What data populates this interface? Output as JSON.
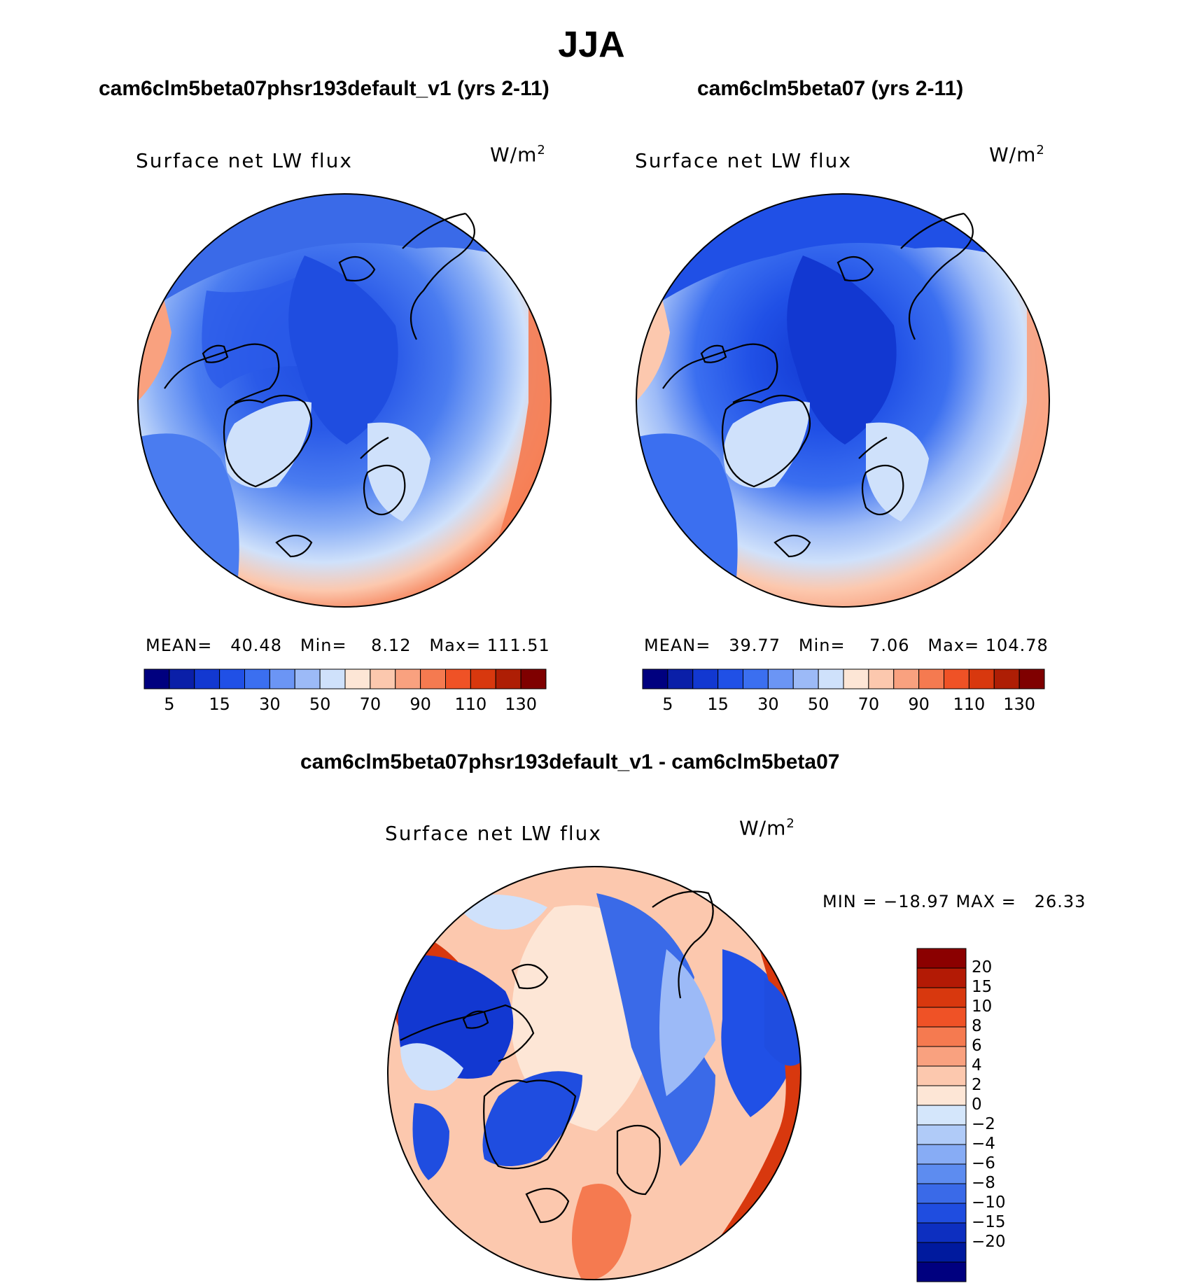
{
  "season": "JJA",
  "panels": {
    "left": {
      "case_title": "cam6clm5beta07phsr193default_v1 (yrs 2-11)",
      "variable": "Surface net LW flux",
      "unit_base": "W/m",
      "unit_exp": "2",
      "mean_label": "MEAN=",
      "mean_value": "40.48",
      "min_label": "Min=",
      "min_value": "8.12",
      "max_label": "Max=",
      "max_value": "111.51"
    },
    "right": {
      "case_title": "cam6clm5beta07 (yrs 2-11)",
      "variable": "Surface net LW flux",
      "unit_base": "W/m",
      "unit_exp": "2",
      "mean_label": "MEAN=",
      "mean_value": "39.77",
      "min_label": "Min=",
      "min_value": "7.06",
      "max_label": "Max=",
      "max_value": "104.78"
    },
    "diff": {
      "case_title": "cam6clm5beta07phsr193default_v1 - cam6clm5beta07",
      "variable": "Surface net LW flux",
      "unit_base": "W/m",
      "unit_exp": "2",
      "minmax_text": "MIN = −18.97 MAX =   26.33"
    }
  },
  "colorbar_top": {
    "colors": [
      "#00007f",
      "#0a1fa8",
      "#1238d1",
      "#2050e6",
      "#3b6ff0",
      "#6b95f5",
      "#9cbaf7",
      "#cfe1fb",
      "#fde6d6",
      "#fcc8ae",
      "#f9a17f",
      "#f57a50",
      "#ef5226",
      "#d8380e",
      "#ae1e05",
      "#7f0000"
    ],
    "tick_labels": [
      "5",
      "15",
      "30",
      "50",
      "70",
      "90",
      "110",
      "130"
    ]
  },
  "colorbar_diff": {
    "colors_top_to_bottom": [
      "#8b0000",
      "#b31a05",
      "#d8380e",
      "#ef5226",
      "#f57a50",
      "#f9a17f",
      "#fcc8ae",
      "#fde6d6",
      "#d4e6fb",
      "#b0cbf8",
      "#87acf5",
      "#5d8cf0",
      "#3a6ae8",
      "#1f4de0",
      "#0d2fc0",
      "#001a9e",
      "#00007f"
    ],
    "tick_labels": [
      "20",
      "15",
      "10",
      "8",
      "6",
      "4",
      "2",
      "0",
      "−2",
      "−4",
      "−6",
      "−8",
      "−10",
      "−15",
      "−20"
    ]
  }
}
